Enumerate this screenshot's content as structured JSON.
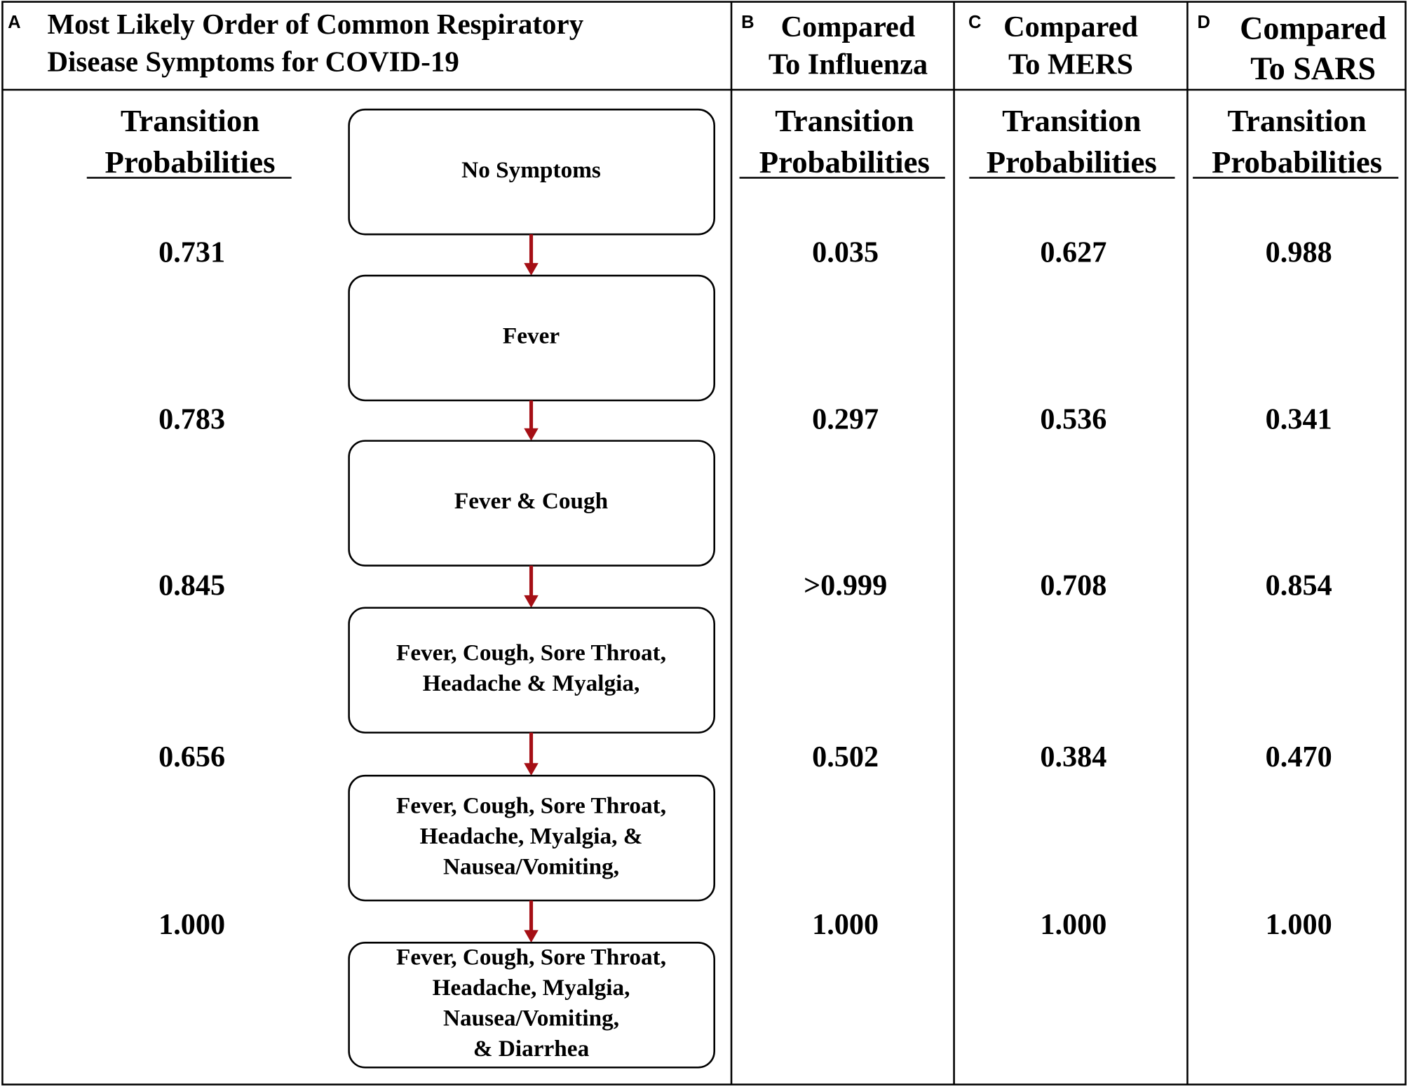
{
  "panels": [
    {
      "letter": "A",
      "title_lines": [
        "Most Likely Order of Common Respiratory",
        "Disease Symptoms  for COVID-19"
      ],
      "heading_lines": [
        "Transition",
        "Probabilities"
      ],
      "probabilities": [
        "0.731",
        "0.783",
        "0.845",
        "0.656",
        "1.000"
      ]
    },
    {
      "letter": "B",
      "title_lines": [
        "Compared",
        "To Influenza"
      ],
      "heading_lines": [
        "Transition",
        "Probabilities"
      ],
      "probabilities": [
        "0.035",
        "0.297",
        ">0.999",
        "0.502",
        "1.000"
      ]
    },
    {
      "letter": "C",
      "title_lines": [
        "Compared",
        "To MERS"
      ],
      "heading_lines": [
        "Transition",
        "Probabilities"
      ],
      "probabilities": [
        "0.627",
        "0.536",
        "0.708",
        "0.384",
        "1.000"
      ]
    },
    {
      "letter": "D",
      "title_lines": [
        "Compared",
        "To SARS"
      ],
      "heading_lines": [
        "Transition",
        "Probabilities"
      ],
      "probabilities": [
        "0.988",
        "0.341",
        "0.854",
        "0.470",
        "1.000"
      ]
    }
  ],
  "states": [
    {
      "lines": [
        "No Symptoms"
      ]
    },
    {
      "lines": [
        "Fever"
      ]
    },
    {
      "lines": [
        "Fever & Cough"
      ]
    },
    {
      "lines": [
        "Fever, Cough, Sore Throat,",
        "Headache & Myalgia,"
      ]
    },
    {
      "lines": [
        "Fever, Cough, Sore Throat,",
        "Headache, Myalgia, &",
        "Nausea/Vomiting,"
      ]
    },
    {
      "lines": [
        "Fever, Cough, Sore Throat,",
        "Headache, Myalgia,",
        "Nausea/Vomiting,",
        "& Diarrhea"
      ]
    }
  ]
}
